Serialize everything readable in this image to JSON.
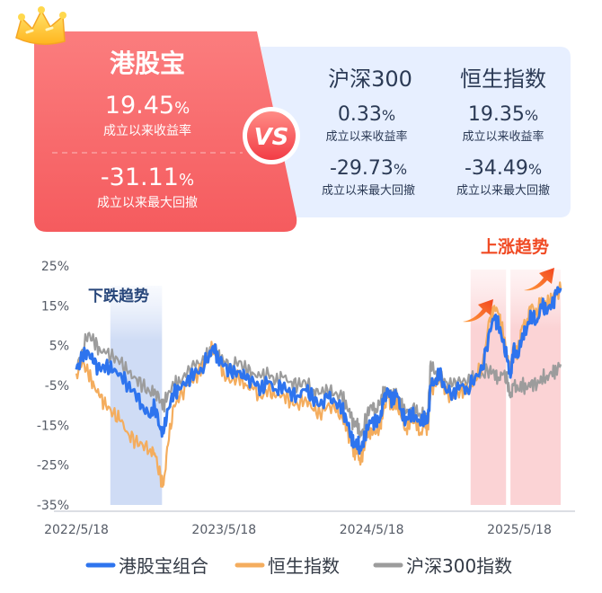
{
  "compare": {
    "left": {
      "title": "港股宝",
      "return_value": "19.45",
      "return_label": "成立以来收益率",
      "drawdown_value": "-31.11",
      "drawdown_label": "成立以来最大回撤",
      "unit": "%"
    },
    "vs": "VS",
    "right": [
      {
        "title": "沪深300",
        "return_value": "0.33",
        "return_label": "成立以来收益率",
        "drawdown_value": "-29.73",
        "drawdown_label": "成立以来最大回撤"
      },
      {
        "title": "恒生指数",
        "return_value": "19.35",
        "return_label": "成立以来收益率",
        "drawdown_value": "-34.49",
        "drawdown_label": "成立以来最大回撤"
      }
    ]
  },
  "colors": {
    "hk": "#2e74ee",
    "hsi": "#f4ad5e",
    "csi": "#9c9c9c",
    "left_card": "#f45c5e",
    "right_card": "#e7efff",
    "down_band": "#cfdcf5",
    "up_band": "#fbd5d7",
    "annot_blue": "#27467a",
    "annot_red": "#f04a23"
  },
  "annotations": {
    "down": "下跌趋势",
    "up": "上涨趋势"
  },
  "chart_data": {
    "type": "line",
    "x_ticks": [
      "2022/5/18",
      "2023/5/18",
      "2024/5/18",
      "2025/5/18"
    ],
    "x_ticks_t": [
      0,
      1,
      2,
      3
    ],
    "ylim": [
      -35,
      25
    ],
    "yticks": [
      25,
      15,
      5,
      -5,
      -15,
      -25,
      -35
    ],
    "ytick_labels": [
      "25%",
      "15%",
      "5%",
      "-5%",
      "-15%",
      "-25%",
      "-35%"
    ],
    "bands": [
      {
        "kind": "down",
        "t_range": [
          0.23,
          0.58
        ]
      },
      {
        "kind": "up",
        "t_range": [
          2.67,
          2.91
        ]
      },
      {
        "kind": "up",
        "t_range": [
          2.94,
          3.28
        ]
      }
    ],
    "series": [
      {
        "name": "港股宝组合",
        "color_key": "hk",
        "points": [
          [
            0.0,
            -1.0
          ],
          [
            0.04,
            2.0
          ],
          [
            0.08,
            3.5
          ],
          [
            0.12,
            0.5
          ],
          [
            0.16,
            -1.0
          ],
          [
            0.2,
            0.0
          ],
          [
            0.25,
            -1.5
          ],
          [
            0.3,
            -2.0
          ],
          [
            0.35,
            -5.0
          ],
          [
            0.4,
            -7.0
          ],
          [
            0.45,
            -10.0
          ],
          [
            0.5,
            -13.0
          ],
          [
            0.53,
            -10.0
          ],
          [
            0.57,
            -16.0
          ],
          [
            0.59,
            -17.0
          ],
          [
            0.62,
            -11.0
          ],
          [
            0.66,
            -7.0
          ],
          [
            0.7,
            -6.0
          ],
          [
            0.75,
            -3.5
          ],
          [
            0.8,
            -2.0
          ],
          [
            0.85,
            -1.0
          ],
          [
            0.9,
            3.0
          ],
          [
            0.93,
            4.5
          ],
          [
            0.96,
            2.0
          ],
          [
            1.0,
            0.0
          ],
          [
            1.05,
            -2.0
          ],
          [
            1.1,
            -1.5
          ],
          [
            1.15,
            -3.5
          ],
          [
            1.2,
            -4.0
          ],
          [
            1.25,
            -6.0
          ],
          [
            1.3,
            -4.0
          ],
          [
            1.35,
            -6.0
          ],
          [
            1.4,
            -5.0
          ],
          [
            1.45,
            -7.0
          ],
          [
            1.5,
            -7.5
          ],
          [
            1.55,
            -6.0
          ],
          [
            1.6,
            -8.0
          ],
          [
            1.65,
            -10.0
          ],
          [
            1.7,
            -8.0
          ],
          [
            1.75,
            -9.0
          ],
          [
            1.8,
            -11.0
          ],
          [
            1.83,
            -14.0
          ],
          [
            1.86,
            -17.0
          ],
          [
            1.88,
            -20.0
          ],
          [
            1.9,
            -19.0
          ],
          [
            1.92,
            -21.0
          ],
          [
            1.94,
            -20.0
          ],
          [
            1.97,
            -15.0
          ],
          [
            2.0,
            -14.0
          ],
          [
            2.03,
            -14.5
          ],
          [
            2.06,
            -13.0
          ],
          [
            2.08,
            -9.0
          ],
          [
            2.11,
            -6.0
          ],
          [
            2.14,
            -9.0
          ],
          [
            2.17,
            -7.0
          ],
          [
            2.2,
            -11.0
          ],
          [
            2.23,
            -14.0
          ],
          [
            2.26,
            -12.0
          ],
          [
            2.3,
            -12.5
          ],
          [
            2.33,
            -15.0
          ],
          [
            2.36,
            -13.0
          ],
          [
            2.38,
            -14.0
          ],
          [
            2.4,
            -5.0
          ],
          [
            2.43,
            -4.0
          ],
          [
            2.46,
            -2.0
          ],
          [
            2.5,
            -6.0
          ],
          [
            2.55,
            -7.0
          ],
          [
            2.6,
            -5.0
          ],
          [
            2.65,
            -6.0
          ],
          [
            2.7,
            -3.0
          ],
          [
            2.75,
            -1.0
          ],
          [
            2.8,
            9.0
          ],
          [
            2.83,
            12.0
          ],
          [
            2.86,
            10.0
          ],
          [
            2.89,
            6.0
          ],
          [
            2.92,
            1.0
          ],
          [
            2.94,
            -3.0
          ],
          [
            2.96,
            4.0
          ],
          [
            2.99,
            2.0
          ],
          [
            3.02,
            8.0
          ],
          [
            3.05,
            9.0
          ],
          [
            3.08,
            13.0
          ],
          [
            3.12,
            11.0
          ],
          [
            3.15,
            15.0
          ],
          [
            3.18,
            14.0
          ],
          [
            3.22,
            15.0
          ],
          [
            3.25,
            18.0
          ],
          [
            3.28,
            19.45
          ]
        ]
      },
      {
        "name": "恒生指数",
        "color_key": "hsi",
        "points": [
          [
            0.0,
            -2.0
          ],
          [
            0.04,
            1.0
          ],
          [
            0.08,
            -2.0
          ],
          [
            0.12,
            -5.0
          ],
          [
            0.16,
            -8.0
          ],
          [
            0.2,
            -10.0
          ],
          [
            0.25,
            -12.0
          ],
          [
            0.3,
            -14.0
          ],
          [
            0.35,
            -17.0
          ],
          [
            0.4,
            -19.0
          ],
          [
            0.45,
            -20.0
          ],
          [
            0.5,
            -21.0
          ],
          [
            0.53,
            -22.0
          ],
          [
            0.57,
            -28.0
          ],
          [
            0.59,
            -30.0
          ],
          [
            0.62,
            -20.0
          ],
          [
            0.66,
            -10.0
          ],
          [
            0.7,
            -8.0
          ],
          [
            0.75,
            -5.0
          ],
          [
            0.8,
            -3.0
          ],
          [
            0.85,
            -1.0
          ],
          [
            0.9,
            3.0
          ],
          [
            0.93,
            5.0
          ],
          [
            0.96,
            2.0
          ],
          [
            1.0,
            -2.0
          ],
          [
            1.05,
            -4.0
          ],
          [
            1.1,
            -3.0
          ],
          [
            1.15,
            -5.0
          ],
          [
            1.2,
            -6.0
          ],
          [
            1.25,
            -8.0
          ],
          [
            1.3,
            -6.0
          ],
          [
            1.35,
            -8.0
          ],
          [
            1.4,
            -7.0
          ],
          [
            1.45,
            -9.0
          ],
          [
            1.5,
            -10.0
          ],
          [
            1.55,
            -8.0
          ],
          [
            1.6,
            -11.0
          ],
          [
            1.65,
            -12.0
          ],
          [
            1.7,
            -10.0
          ],
          [
            1.75,
            -11.0
          ],
          [
            1.8,
            -13.0
          ],
          [
            1.83,
            -16.0
          ],
          [
            1.86,
            -19.0
          ],
          [
            1.88,
            -22.0
          ],
          [
            1.9,
            -21.0
          ],
          [
            1.92,
            -24.0
          ],
          [
            1.94,
            -22.0
          ],
          [
            1.97,
            -17.0
          ],
          [
            2.0,
            -16.0
          ],
          [
            2.03,
            -17.0
          ],
          [
            2.06,
            -15.0
          ],
          [
            2.08,
            -11.0
          ],
          [
            2.11,
            -8.0
          ],
          [
            2.14,
            -11.0
          ],
          [
            2.17,
            -9.0
          ],
          [
            2.2,
            -13.0
          ],
          [
            2.23,
            -16.0
          ],
          [
            2.26,
            -14.0
          ],
          [
            2.3,
            -14.0
          ],
          [
            2.33,
            -17.0
          ],
          [
            2.36,
            -15.0
          ],
          [
            2.38,
            -16.0
          ],
          [
            2.4,
            -6.0
          ],
          [
            2.43,
            -5.0
          ],
          [
            2.46,
            -3.0
          ],
          [
            2.5,
            -7.0
          ],
          [
            2.55,
            -8.0
          ],
          [
            2.6,
            -6.0
          ],
          [
            2.65,
            -6.5
          ],
          [
            2.7,
            -3.0
          ],
          [
            2.75,
            0.0
          ],
          [
            2.8,
            12.0
          ],
          [
            2.83,
            15.0
          ],
          [
            2.86,
            13.0
          ],
          [
            2.89,
            8.0
          ],
          [
            2.92,
            2.0
          ],
          [
            2.94,
            -2.0
          ],
          [
            2.96,
            5.0
          ],
          [
            2.99,
            3.0
          ],
          [
            3.02,
            10.0
          ],
          [
            3.05,
            11.0
          ],
          [
            3.08,
            15.0
          ],
          [
            3.12,
            13.0
          ],
          [
            3.15,
            17.0
          ],
          [
            3.18,
            15.0
          ],
          [
            3.22,
            17.0
          ],
          [
            3.25,
            18.0
          ],
          [
            3.28,
            19.35
          ]
        ]
      },
      {
        "name": "沪深300指数",
        "color_key": "csi",
        "points": [
          [
            0.0,
            -1.0
          ],
          [
            0.04,
            4.0
          ],
          [
            0.08,
            8.0
          ],
          [
            0.12,
            6.0
          ],
          [
            0.16,
            4.0
          ],
          [
            0.2,
            3.0
          ],
          [
            0.25,
            2.0
          ],
          [
            0.3,
            1.0
          ],
          [
            0.35,
            -2.0
          ],
          [
            0.4,
            -3.0
          ],
          [
            0.45,
            -5.0
          ],
          [
            0.5,
            -7.0
          ],
          [
            0.53,
            -6.0
          ],
          [
            0.57,
            -9.0
          ],
          [
            0.59,
            -10.0
          ],
          [
            0.62,
            -7.0
          ],
          [
            0.66,
            -5.0
          ],
          [
            0.7,
            -4.0
          ],
          [
            0.75,
            -2.0
          ],
          [
            0.8,
            0.0
          ],
          [
            0.85,
            1.0
          ],
          [
            0.9,
            3.0
          ],
          [
            0.93,
            4.0
          ],
          [
            0.96,
            3.0
          ],
          [
            1.0,
            1.0
          ],
          [
            1.05,
            0.0
          ],
          [
            1.1,
            1.0
          ],
          [
            1.15,
            -1.0
          ],
          [
            1.2,
            -2.0
          ],
          [
            1.25,
            -3.0
          ],
          [
            1.3,
            -2.0
          ],
          [
            1.35,
            -4.0
          ],
          [
            1.4,
            -3.0
          ],
          [
            1.45,
            -4.0
          ],
          [
            1.5,
            -5.0
          ],
          [
            1.55,
            -4.0
          ],
          [
            1.6,
            -6.0
          ],
          [
            1.65,
            -7.0
          ],
          [
            1.7,
            -6.0
          ],
          [
            1.75,
            -7.0
          ],
          [
            1.8,
            -8.0
          ],
          [
            1.83,
            -10.0
          ],
          [
            1.86,
            -13.0
          ],
          [
            1.88,
            -15.0
          ],
          [
            1.9,
            -14.0
          ],
          [
            1.92,
            -18.0
          ],
          [
            1.94,
            -16.0
          ],
          [
            1.97,
            -12.0
          ],
          [
            2.0,
            -10.0
          ],
          [
            2.03,
            -11.0
          ],
          [
            2.06,
            -9.0
          ],
          [
            2.08,
            -7.0
          ],
          [
            2.11,
            -6.0
          ],
          [
            2.14,
            -8.0
          ],
          [
            2.17,
            -7.0
          ],
          [
            2.2,
            -10.0
          ],
          [
            2.23,
            -12.0
          ],
          [
            2.26,
            -11.0
          ],
          [
            2.3,
            -11.0
          ],
          [
            2.33,
            -13.0
          ],
          [
            2.36,
            -12.0
          ],
          [
            2.38,
            -13.0
          ],
          [
            2.4,
            1.0
          ],
          [
            2.43,
            -2.0
          ],
          [
            2.46,
            -3.0
          ],
          [
            2.5,
            -4.0
          ],
          [
            2.55,
            -5.0
          ],
          [
            2.6,
            -4.0
          ],
          [
            2.65,
            -4.0
          ],
          [
            2.7,
            -3.0
          ],
          [
            2.75,
            -2.0
          ],
          [
            2.8,
            -1.0
          ],
          [
            2.83,
            -2.0
          ],
          [
            2.86,
            -3.0
          ],
          [
            2.89,
            -2.0
          ],
          [
            2.92,
            -4.0
          ],
          [
            2.94,
            -8.0
          ],
          [
            2.96,
            -5.0
          ],
          [
            2.99,
            -6.0
          ],
          [
            3.02,
            -5.0
          ],
          [
            3.05,
            -6.0
          ],
          [
            3.08,
            -4.0
          ],
          [
            3.12,
            -5.0
          ],
          [
            3.15,
            -3.0
          ],
          [
            3.18,
            -3.0
          ],
          [
            3.22,
            -2.0
          ],
          [
            3.25,
            -1.0
          ],
          [
            3.28,
            0.33
          ]
        ]
      }
    ],
    "legend": [
      {
        "label": "港股宝组合",
        "color_key": "hk"
      },
      {
        "label": "恒生指数",
        "color_key": "hsi"
      },
      {
        "label": "沪深300指数",
        "color_key": "csi"
      }
    ],
    "legend_position": "bottom",
    "grid": false
  }
}
